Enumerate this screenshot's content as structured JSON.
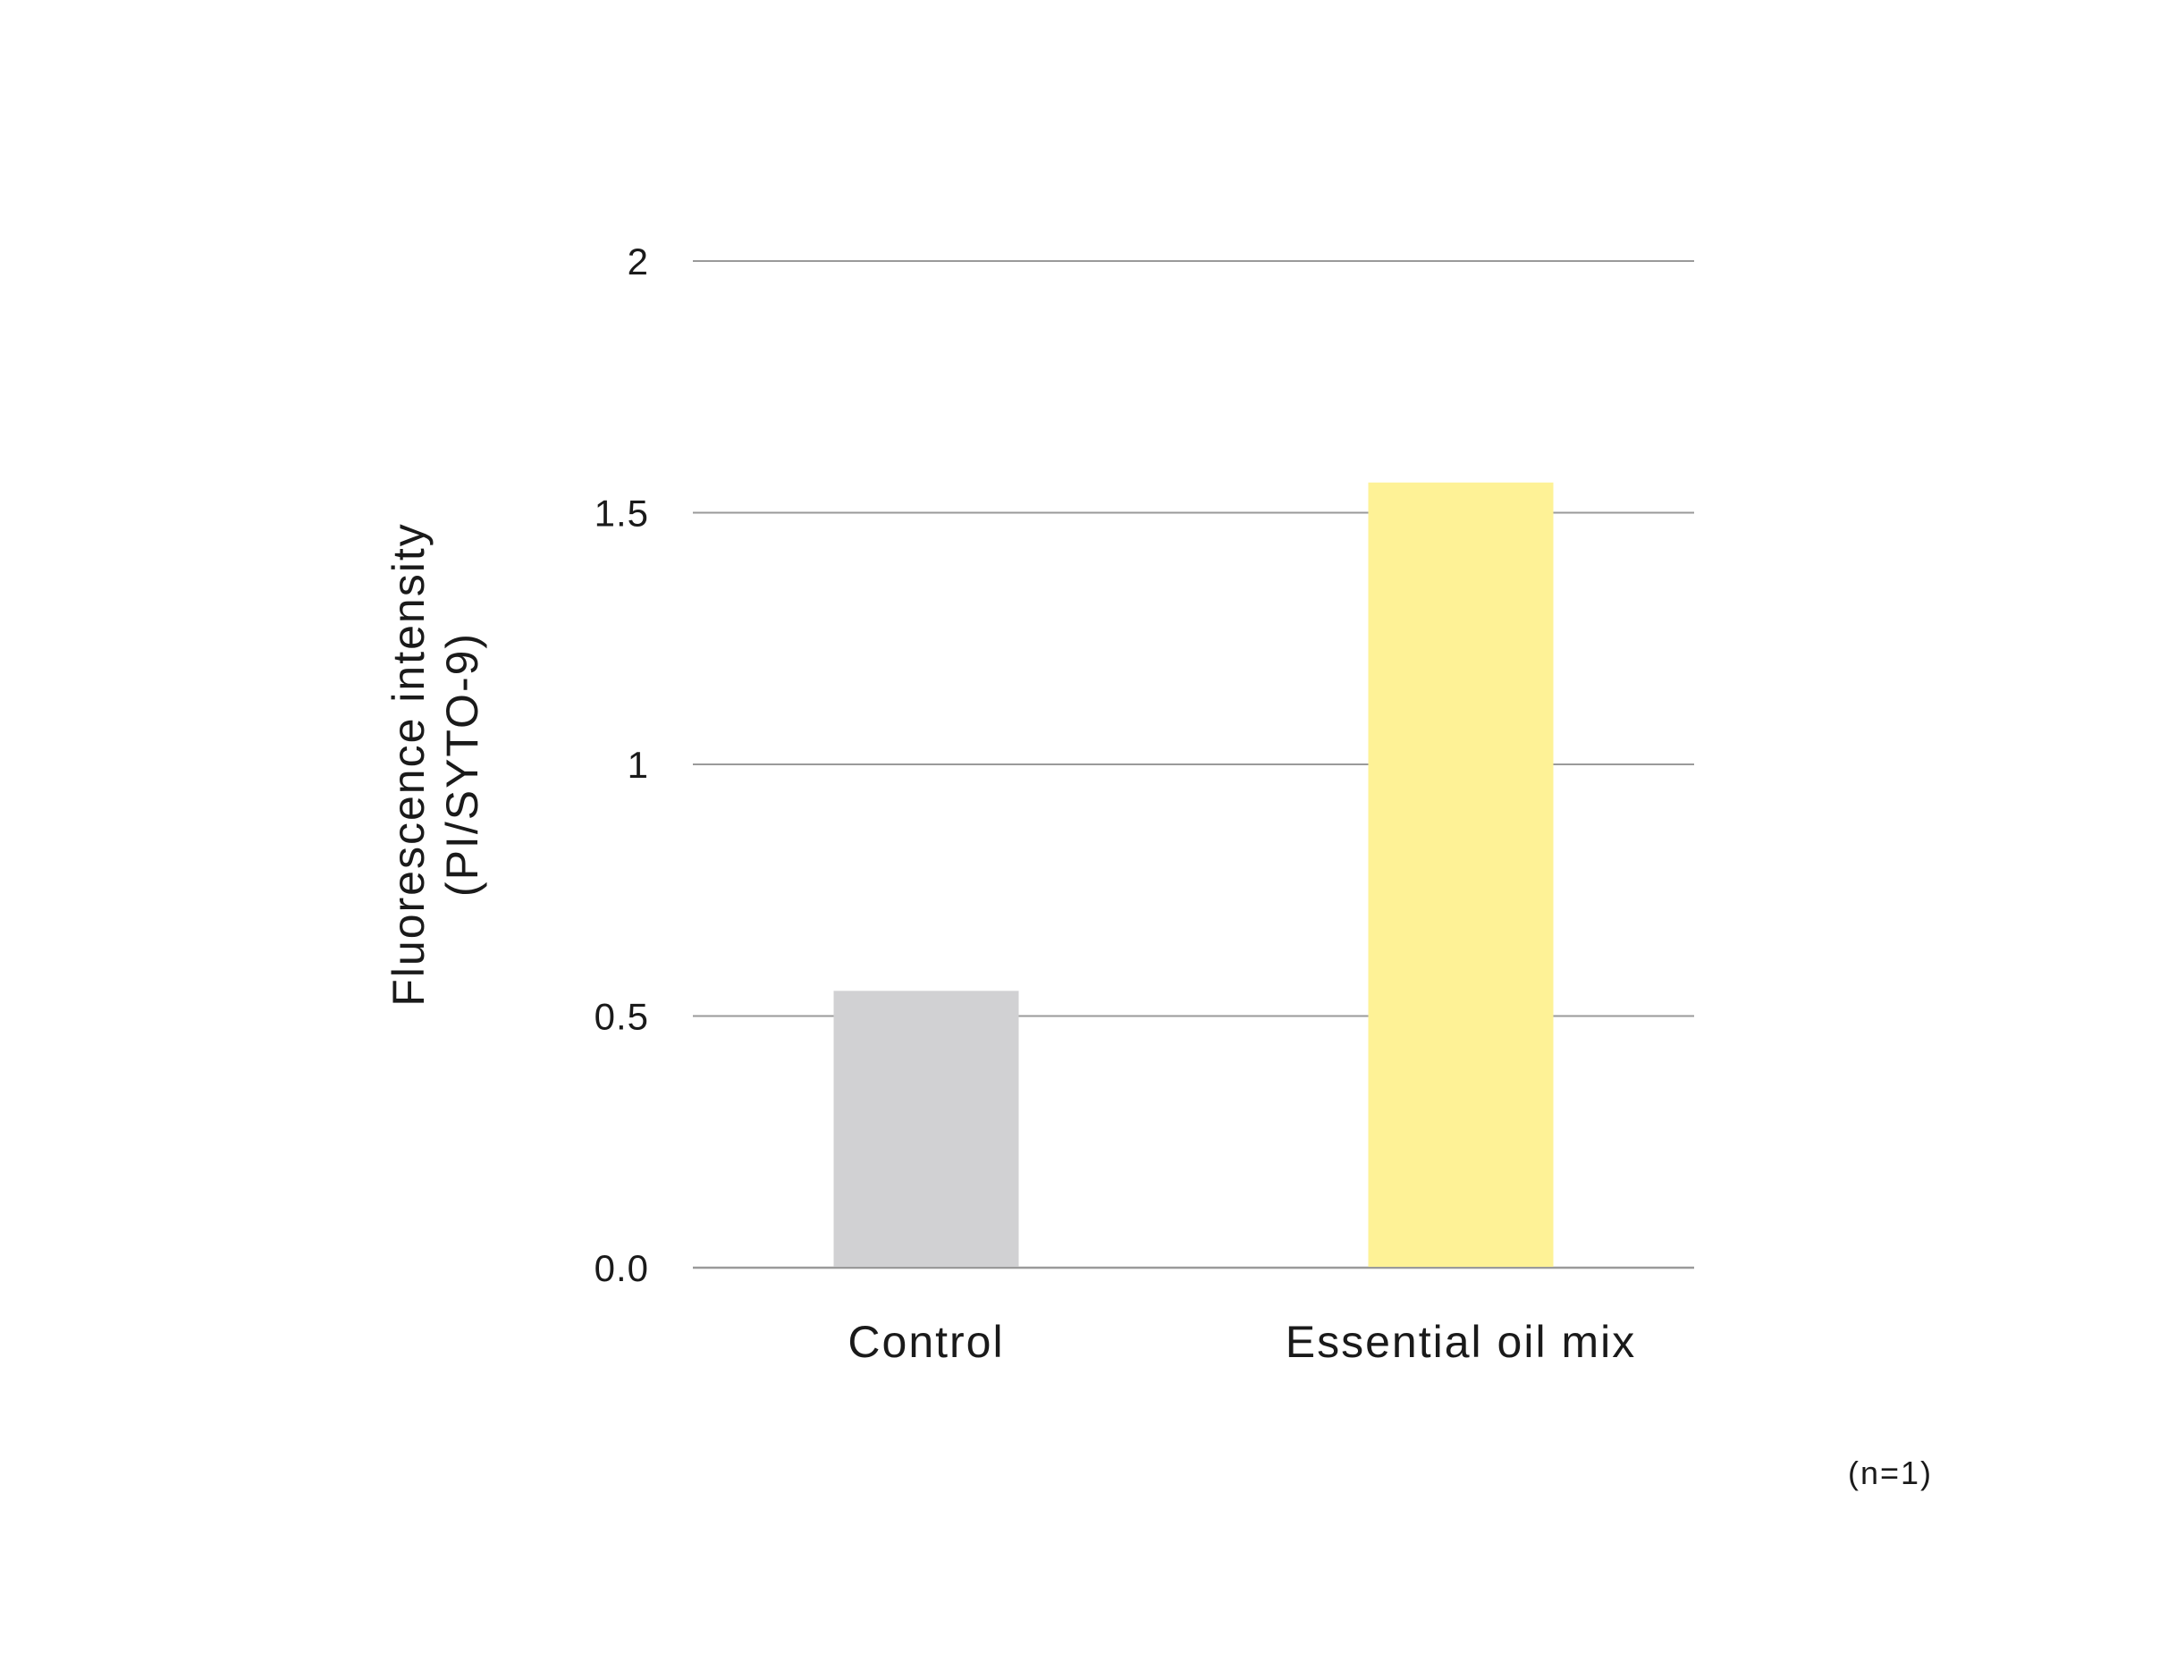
{
  "chart_data": {
    "type": "bar",
    "categories": [
      "Control",
      "Essential oil mix"
    ],
    "values": [
      0.55,
      1.56
    ],
    "bar_colors": [
      "#d1d1d3",
      "#fef296"
    ],
    "ylabel_lines": [
      "Fluorescence intensity",
      "(PI/SYTO-9)"
    ],
    "xlabel": "",
    "ylim": [
      0,
      2
    ],
    "yticks": [
      0,
      0.5,
      1,
      1.5,
      2
    ],
    "ytick_labels": [
      "0.0",
      "0.5",
      "1",
      "1.5",
      "2"
    ],
    "grid": true,
    "gridline_color": "#9a9a9a",
    "legend": "none"
  },
  "annotations": {
    "sample_size": "(n=1)"
  }
}
